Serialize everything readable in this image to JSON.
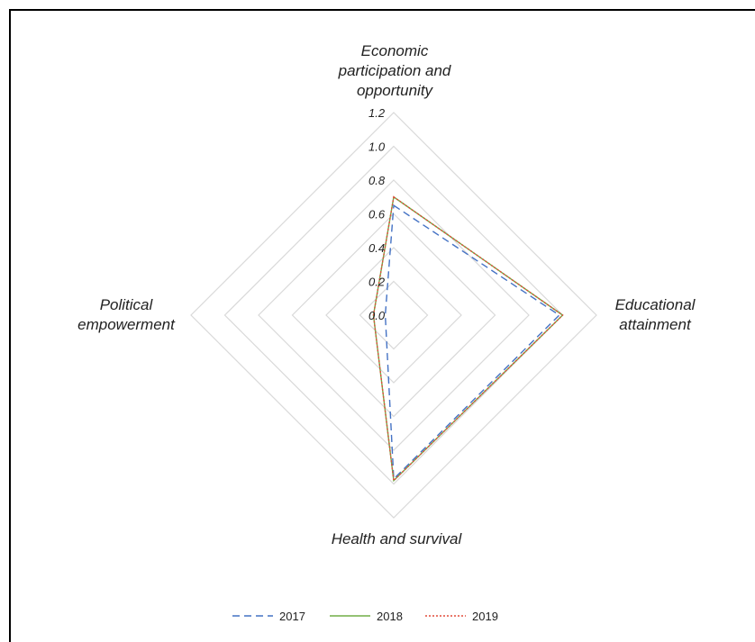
{
  "chart_data": {
    "type": "radar",
    "title": "",
    "categories": [
      "Economic participation and opportunity",
      "Educational attainment",
      "Health and survival",
      "Political empowerment"
    ],
    "category_label_lines": [
      [
        "Economic",
        "participation and",
        "opportunity"
      ],
      [
        "Educational",
        "attainment"
      ],
      [
        "Health and survival"
      ],
      [
        "Political",
        "empowerment"
      ]
    ],
    "radial_ticks": [
      "0.0",
      "0.2",
      "0.4",
      "0.6",
      "0.8",
      "1.0",
      "1.2"
    ],
    "rlim": [
      0,
      1.2
    ],
    "grid": true,
    "legend_position": "bottom",
    "series": [
      {
        "name": "2017",
        "values": [
          0.65,
          0.98,
          0.97,
          0.05
        ],
        "color": "#4472C4",
        "dash": "8,5"
      },
      {
        "name": "2018",
        "values": [
          0.7,
          1.0,
          0.98,
          0.12
        ],
        "color": "#70AD47",
        "dash": ""
      },
      {
        "name": "2019",
        "values": [
          0.7,
          1.0,
          0.98,
          0.12
        ],
        "color": "#E24B3B",
        "dash": "2,2"
      }
    ]
  }
}
